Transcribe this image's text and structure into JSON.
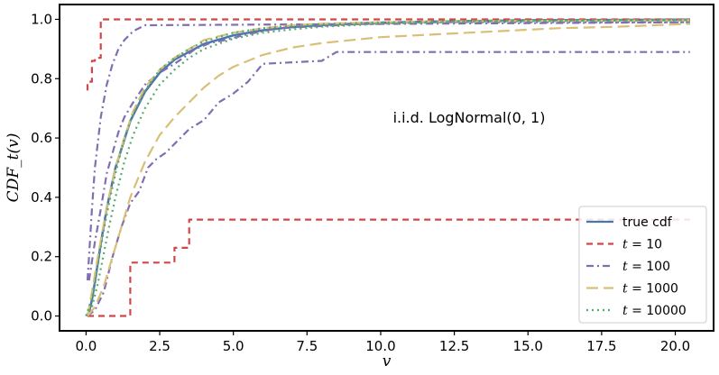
{
  "chart_data": {
    "type": "line",
    "title": "",
    "xlabel": "v",
    "ylabel": "CDF_t(v)",
    "annotation": "i.i.d. LogNormal(0, 1)",
    "xlim": [
      -0.9,
      21.3
    ],
    "ylim": [
      -0.05,
      1.05
    ],
    "xticks": [
      0.0,
      2.5,
      5.0,
      7.5,
      10.0,
      12.5,
      15.0,
      17.5,
      20.0
    ],
    "xtick_labels": [
      "0.0",
      "2.5",
      "5.0",
      "7.5",
      "10.0",
      "12.5",
      "15.0",
      "17.5",
      "20.0"
    ],
    "yticks": [
      0.0,
      0.2,
      0.4,
      0.6,
      0.8,
      1.0
    ],
    "ytick_labels": [
      "0.0",
      "0.2",
      "0.4",
      "0.6",
      "0.8",
      "1.0"
    ],
    "grid": false,
    "legend_position": "bottom-right",
    "series": [
      {
        "name": "true cdf",
        "label_text": "true cdf",
        "color": "#4a76ae",
        "style": "solid",
        "kind": "smooth",
        "x": [
          0.0,
          0.1,
          0.2,
          0.3,
          0.5,
          0.7,
          1.0,
          1.5,
          2.0,
          2.5,
          3.0,
          4.0,
          5.0,
          6.0,
          7.0,
          8.0,
          10.0,
          12.0,
          15.0,
          20.5
        ],
        "y": [
          0.0,
          0.011,
          0.054,
          0.114,
          0.244,
          0.362,
          0.5,
          0.657,
          0.756,
          0.82,
          0.864,
          0.917,
          0.946,
          0.963,
          0.974,
          0.981,
          0.989,
          0.993,
          0.997,
          0.999
        ]
      },
      {
        "name": "t = 10",
        "label_prefix": "t",
        "label_value": "10",
        "color": "#d0474a",
        "style": "dashed",
        "kind": "step",
        "x": [
          0.05,
          0.05,
          0.2,
          0.2,
          0.3,
          0.3,
          0.5,
          0.5,
          20.5,
          null,
          0.05,
          0.05,
          1.5,
          1.5,
          3.0,
          3.0,
          3.5,
          3.5,
          20.5
        ],
        "y": [
          0.76,
          0.79,
          0.79,
          0.86,
          0.86,
          0.87,
          0.87,
          1.0,
          1.0,
          null,
          0.0,
          0.0,
          0.0,
          0.18,
          0.18,
          0.23,
          0.23,
          0.325,
          0.325
        ]
      },
      {
        "name": "t = 100",
        "label_prefix": "t",
        "label_value": "100",
        "color": "#7f6fb1",
        "style": "dashdot",
        "kind": "polyline",
        "x": [
          0.05,
          0.1,
          0.2,
          0.3,
          0.5,
          0.7,
          0.9,
          1.1,
          1.3,
          1.6,
          2.0,
          20.5,
          null,
          0.05,
          0.3,
          0.6,
          0.9,
          1.2,
          1.5,
          1.8,
          2.1,
          2.4,
          2.7,
          3.0,
          3.5,
          4.0,
          4.5,
          5.0,
          5.5,
          6.0,
          8.0,
          8.5,
          20.5,
          null,
          0.1,
          0.3,
          0.5,
          0.7,
          0.9,
          1.1,
          1.3,
          1.6,
          2.0,
          2.5,
          3.0,
          3.3,
          3.7,
          4.2,
          4.7,
          5.1,
          5.5,
          6.0,
          6.5,
          7.5,
          8.5,
          9.5,
          11.0,
          13.0,
          16.0,
          20.5
        ],
        "y": [
          0.12,
          0.2,
          0.36,
          0.5,
          0.67,
          0.78,
          0.85,
          0.9,
          0.93,
          0.96,
          0.98,
          0.99,
          null,
          0.0,
          0.02,
          0.08,
          0.2,
          0.3,
          0.38,
          0.42,
          0.5,
          0.53,
          0.55,
          0.58,
          0.63,
          0.66,
          0.72,
          0.75,
          0.79,
          0.85,
          0.86,
          0.89,
          0.89,
          null,
          0.12,
          0.25,
          0.36,
          0.48,
          0.55,
          0.62,
          0.67,
          0.72,
          0.78,
          0.82,
          0.85,
          0.87,
          0.9,
          0.92,
          0.93,
          0.94,
          0.95,
          0.96,
          0.97,
          0.975,
          0.98,
          0.985,
          0.99,
          0.99,
          0.99,
          0.99
        ]
      },
      {
        "name": "t = 1000",
        "label_prefix": "t",
        "label_value": "1000",
        "color": "#d9bf77",
        "style": "longdash",
        "kind": "polyline",
        "x": [
          0.05,
          0.2,
          0.4,
          0.6,
          0.8,
          1.0,
          1.3,
          1.6,
          2.0,
          2.5,
          3.0,
          3.5,
          4.0,
          5.0,
          6.0,
          7.0,
          8.0,
          10.0,
          12.0,
          15.0,
          20.5,
          null,
          0.05,
          0.3,
          0.6,
          0.9,
          1.2,
          1.5,
          2.0,
          2.5,
          3.0,
          3.5,
          4.0,
          4.5,
          5.0,
          6.0,
          7.0,
          8.0,
          9.0,
          10.0,
          12.0,
          14.0,
          16.0,
          18.0,
          20.5
        ],
        "y": [
          0.0,
          0.08,
          0.2,
          0.31,
          0.41,
          0.5,
          0.6,
          0.69,
          0.77,
          0.83,
          0.87,
          0.9,
          0.93,
          0.955,
          0.97,
          0.98,
          0.985,
          0.99,
          0.993,
          0.995,
          0.997,
          null,
          0.0,
          0.03,
          0.1,
          0.2,
          0.3,
          0.4,
          0.52,
          0.61,
          0.67,
          0.72,
          0.77,
          0.81,
          0.84,
          0.88,
          0.905,
          0.92,
          0.93,
          0.94,
          0.95,
          0.96,
          0.97,
          0.975,
          0.985
        ]
      },
      {
        "name": "t = 10000",
        "label_prefix": "t",
        "label_value": "10000",
        "color": "#56ab6c",
        "style": "dotted",
        "kind": "polyline",
        "x": [
          0.0,
          0.2,
          0.4,
          0.6,
          0.8,
          1.0,
          1.3,
          1.6,
          2.0,
          2.5,
          3.0,
          3.5,
          4.0,
          5.0,
          6.0,
          7.0,
          8.0,
          10.0,
          12.0,
          15.0,
          20.5,
          null,
          0.0,
          0.2,
          0.4,
          0.6,
          0.8,
          1.0,
          1.3,
          1.6,
          2.0,
          2.5,
          3.0,
          3.5,
          4.0,
          5.0,
          6.0,
          7.0,
          8.0,
          10.0,
          12.0,
          15.0,
          20.5
        ],
        "y": [
          0.0,
          0.06,
          0.17,
          0.29,
          0.39,
          0.48,
          0.6,
          0.68,
          0.76,
          0.83,
          0.87,
          0.9,
          0.925,
          0.955,
          0.97,
          0.978,
          0.984,
          0.99,
          0.993,
          0.996,
          0.998,
          null,
          0.0,
          0.03,
          0.11,
          0.21,
          0.31,
          0.4,
          0.52,
          0.61,
          0.7,
          0.78,
          0.83,
          0.87,
          0.9,
          0.935,
          0.955,
          0.966,
          0.975,
          0.985,
          0.99,
          0.994,
          0.997
        ]
      }
    ]
  }
}
